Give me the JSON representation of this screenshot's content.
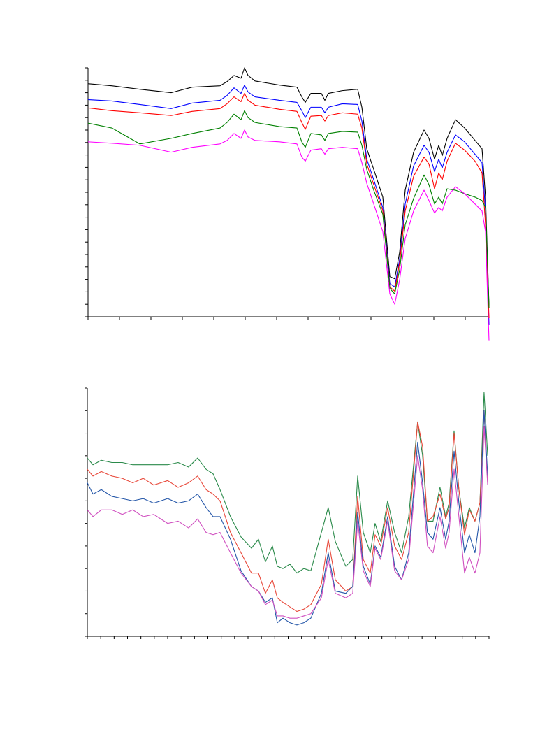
{
  "chart_data": [
    {
      "type": "line",
      "x": [
        0,
        34,
        74,
        119,
        149,
        189,
        199,
        209,
        219,
        224,
        229,
        239,
        274,
        299,
        306,
        311,
        319,
        334,
        339,
        344,
        364,
        386,
        392,
        399,
        409,
        422,
        432,
        439,
        446,
        454,
        466,
        481,
        488,
        496,
        502,
        507,
        514,
        526,
        539,
        554,
        564,
        569,
        574
      ],
      "xlim": [
        0,
        574
      ],
      "xticks": [
        0,
        45,
        90,
        135,
        180,
        225,
        270,
        315,
        360,
        405,
        450,
        495,
        540
      ],
      "ylim": [
        0,
        360
      ],
      "yticks": [
        0,
        18,
        36,
        54,
        72,
        90,
        108,
        126,
        144,
        162,
        180,
        198,
        216,
        234,
        252,
        270,
        288,
        306,
        324,
        342,
        360
      ],
      "grid": false,
      "series": [
        {
          "color": "#000000",
          "values": [
            337,
            334,
            329,
            324,
            332,
            334,
            340,
            349,
            345,
            360,
            349,
            341,
            335,
            332,
            318,
            310,
            323,
            323,
            313,
            323,
            327,
            329,
            303,
            243,
            213,
            173,
            58,
            55,
            93,
            183,
            238,
            270,
            258,
            228,
            248,
            233,
            258,
            285,
            273,
            255,
            243,
            173,
            15
          ]
        },
        {
          "color": "#0000ff",
          "values": [
            314,
            312,
            307,
            301,
            309,
            313,
            320,
            331,
            323,
            335,
            325,
            318,
            313,
            310,
            298,
            288,
            303,
            303,
            295,
            303,
            308,
            307,
            283,
            228,
            198,
            158,
            48,
            43,
            83,
            163,
            218,
            248,
            238,
            210,
            228,
            215,
            238,
            263,
            253,
            235,
            223,
            153,
            -12
          ]
        },
        {
          "color": "#ff0000",
          "values": [
            302,
            298,
            295,
            291,
            297,
            301,
            308,
            318,
            311,
            323,
            313,
            306,
            300,
            297,
            281,
            271,
            290,
            291,
            283,
            291,
            295,
            293,
            273,
            221,
            191,
            153,
            43,
            37,
            78,
            153,
            203,
            231,
            221,
            185,
            208,
            198,
            225,
            251,
            241,
            225,
            208,
            133,
            -2
          ]
        },
        {
          "color": "#008000",
          "values": [
            280,
            273,
            250,
            258,
            265,
            273,
            281,
            293,
            285,
            298,
            288,
            281,
            275,
            273,
            253,
            245,
            265,
            263,
            255,
            265,
            268,
            267,
            248,
            213,
            183,
            148,
            41,
            33,
            68,
            133,
            171,
            205,
            191,
            163,
            173,
            163,
            185,
            183,
            178,
            173,
            168,
            158,
            13
          ]
        },
        {
          "color": "#ff00ff",
          "values": [
            253,
            251,
            248,
            238,
            245,
            250,
            255,
            265,
            258,
            270,
            260,
            255,
            253,
            250,
            231,
            225,
            241,
            243,
            235,
            243,
            245,
            243,
            223,
            193,
            163,
            123,
            33,
            18,
            53,
            113,
            153,
            183,
            168,
            150,
            158,
            153,
            173,
            188,
            178,
            163,
            153,
            123,
            -35
          ]
        }
      ]
    },
    {
      "type": "line",
      "x": [
        0,
        0.42,
        1.04,
        1.83,
        2.61,
        3.39,
        4.17,
        4.96,
        6.0,
        6.78,
        7.56,
        8.24,
        8.87,
        9.39,
        9.91,
        10.69,
        11.48,
        12.26,
        12.78,
        13.3,
        13.82,
        14.19,
        14.61,
        15.13,
        15.65,
        16.17,
        16.69,
        17.48,
        17.99,
        18.52,
        19.3,
        19.82,
        20.19,
        20.61,
        21.13,
        21.49,
        21.91,
        22.43,
        22.95,
        23.47,
        24.0,
        24.67,
        25.04,
        25.4,
        25.82,
        26.34,
        26.76,
        27.02,
        27.39,
        27.75,
        28.17,
        28.53,
        28.95,
        29.32,
        29.63,
        29.9
      ],
      "xlim": [
        0,
        30
      ],
      "xticks": [
        0,
        1,
        2,
        3,
        4,
        5,
        6,
        7,
        8,
        9,
        10,
        11,
        12,
        13,
        14,
        15,
        16,
        17,
        18,
        19,
        20,
        21,
        22,
        23,
        24,
        25,
        26,
        27,
        28,
        29,
        30
      ],
      "ylim": [
        0,
        110
      ],
      "yticks": [
        0,
        10,
        20,
        30,
        40,
        50,
        60,
        70,
        80,
        90,
        100,
        110
      ],
      "grid": false,
      "series": [
        {
          "color": "#2a8a4a",
          "values": [
            79,
            76,
            78,
            77,
            77,
            76,
            76,
            76,
            76,
            77,
            75,
            79,
            74,
            72,
            65,
            53,
            44,
            39,
            43,
            33,
            40,
            31,
            30,
            32,
            28,
            30,
            29,
            46,
            57,
            42,
            31,
            34,
            71,
            46,
            37,
            50,
            42,
            60,
            46,
            37,
            53,
            95,
            80,
            51,
            51,
            66,
            53,
            59,
            91,
            65,
            48,
            57,
            51,
            59,
            108,
            80
          ]
        },
        {
          "color": "#e8483a",
          "values": [
            74,
            71,
            73,
            71,
            70,
            68,
            70,
            67,
            69,
            66,
            68,
            71,
            65,
            63,
            60,
            46,
            37,
            28,
            28,
            19,
            25,
            17,
            15,
            13,
            11,
            12,
            14,
            23,
            43,
            25,
            20,
            22,
            62,
            34,
            28,
            45,
            40,
            57,
            40,
            34,
            46,
            95,
            84,
            51,
            53,
            63,
            52,
            57,
            90,
            65,
            45,
            56,
            51,
            59,
            100,
            68
          ]
        },
        {
          "color": "#2456a8",
          "values": [
            68,
            63,
            65,
            62,
            61,
            60,
            61,
            59,
            61,
            59,
            60,
            63,
            57,
            53,
            53,
            43,
            29,
            22,
            20,
            15,
            17,
            6,
            8,
            6,
            5,
            6,
            8,
            19,
            37,
            20,
            19,
            22,
            55,
            31,
            23,
            40,
            35,
            53,
            31,
            25,
            37,
            86,
            68,
            46,
            43,
            57,
            43,
            51,
            82,
            59,
            37,
            45,
            37,
            53,
            100,
            71
          ]
        },
        {
          "color": "#d050c0",
          "values": [
            56,
            53,
            56,
            56,
            54,
            56,
            53,
            54,
            50,
            51,
            48,
            52,
            46,
            45,
            46,
            37,
            28,
            22,
            20,
            14,
            16,
            9,
            9,
            8,
            8,
            9,
            10,
            17,
            34,
            19,
            17,
            19,
            51,
            29,
            22,
            39,
            34,
            51,
            29,
            25,
            34,
            80,
            65,
            40,
            37,
            53,
            39,
            46,
            74,
            53,
            28,
            35,
            28,
            37,
            93,
            67
          ]
        }
      ]
    }
  ]
}
